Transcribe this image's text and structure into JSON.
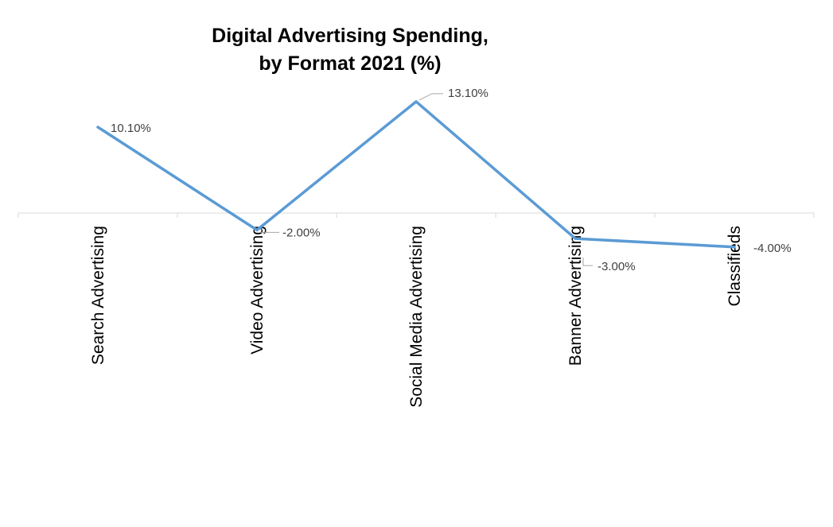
{
  "chart_data": {
    "type": "line",
    "title_line1": "Digital Advertising Spending,",
    "title_line2": "by Format 2021   (%)",
    "xlabel": "",
    "ylabel": "",
    "categories": [
      "Search Advertising",
      "Video Advertising",
      "Social Media Advertising",
      "Banner Advertising",
      "Classifieds"
    ],
    "series": [
      {
        "values": [
          10.1,
          -2.0,
          13.1,
          -3.0,
          -4.0
        ],
        "data_labels": [
          "10.10%",
          "-2.00%",
          "13.10%",
          "-3.00%",
          "-4.00%"
        ],
        "color": "#5b9bd5"
      }
    ],
    "ylim": [
      -13,
      23
    ],
    "grid": false,
    "legend": "none"
  }
}
